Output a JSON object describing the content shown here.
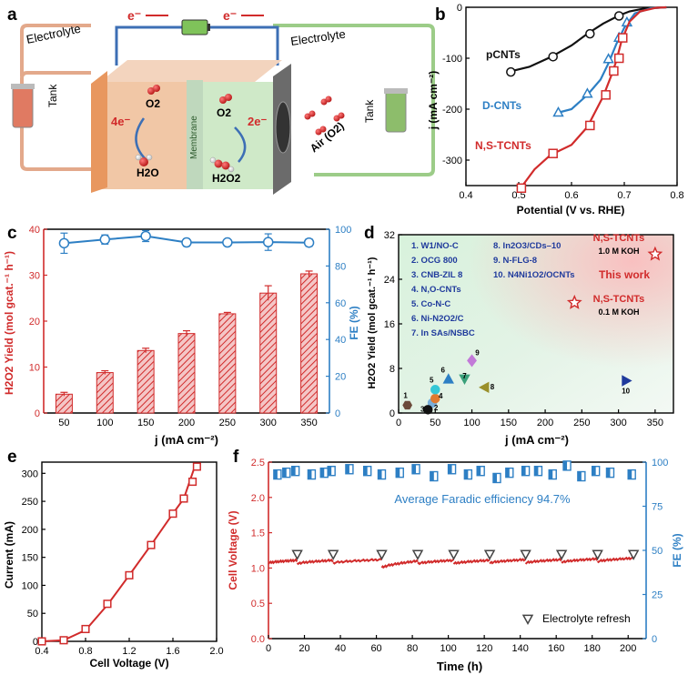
{
  "panels": {
    "a": {
      "letter": "a",
      "electron_left": "e⁻",
      "electron_right": "e⁻",
      "electrolyte_left": "Electrolyte",
      "electrolyte_right": "Electrolyte",
      "tank_left": "Tank",
      "tank_right": "Tank",
      "o2_left": "O2",
      "four_e": "4e⁻",
      "h2o": "H2O",
      "membrane": "Membrane",
      "o2_right": "O2",
      "two_e": "2e⁻",
      "h2o2": "H2O2",
      "air": "Air (O2)",
      "colors": {
        "anode": "#e8975f",
        "cathode": "#a9d7a0",
        "tank_left": "#e07a62",
        "tank_right": "#8dbd6b",
        "wire": "#3d6fb5",
        "electrolyte_left": "#e3a98b",
        "electrolyte_right": "#9ccc88"
      }
    },
    "b": {
      "letter": "b",
      "xlabel": "Potential (V vs. RHE)",
      "ylabel": "j (mA cm⁻²)",
      "label_pCNTs": "pCNTs",
      "label_DCNTs": "D-CNTs",
      "label_NSTCNTs": "N,S-TCNTs"
    },
    "c": {
      "letter": "c",
      "xlabel": "j (mA cm⁻²)",
      "ylabel_left": "H2O2 Yield (mol gcat.⁻¹ h⁻¹)",
      "ylabel_right": "FE (%)"
    },
    "d": {
      "letter": "d",
      "xlabel": "j (mA cm⁻²)",
      "ylabel": "H2O2 Yield (mol gcat.⁻¹ h⁻¹)",
      "legend_left": [
        "1. W1/NO-C",
        "2. OCG 800",
        "3. CNB-ZIL 8",
        "4. N,O-CNTs",
        "5. Co-N-C",
        "6. Ni-N2O2/C",
        "7. In SAs/NSBC"
      ],
      "legend_right": [
        "8. In2O3/CDs–10",
        "9. N-FLG-8",
        "10. N4Ni1O2/OCNTs"
      ],
      "this_work_1": "N,S-TCNTs",
      "this_work_1_cond": "1.0 M KOH",
      "this_work_label": "This work",
      "this_work_2": "N,S-TCNTs",
      "this_work_2_cond": "0.1 M KOH"
    },
    "e": {
      "letter": "e",
      "xlabel": "Cell Voltage (V)",
      "ylabel": "Current (mA)"
    },
    "f": {
      "letter": "f",
      "xlabel": "Time (h)",
      "ylabel_left": "Cell Voltage (V)",
      "ylabel_right": "FE (%)",
      "annotation": "Average Faradic efficiency 94.7%",
      "legend_refresh": "Electrolyte refresh"
    }
  },
  "chart_data": [
    {
      "panel": "b",
      "type": "line",
      "xlim": [
        0.4,
        0.8
      ],
      "ylim": [
        -350,
        0
      ],
      "xticks": [
        0.4,
        0.5,
        0.6,
        0.7,
        0.8
      ],
      "yticks": [
        0,
        -100,
        -200,
        -300
      ],
      "series": [
        {
          "name": "pCNTs",
          "color": "#111111",
          "marker": "circle",
          "points": [
            [
              0.48,
              -127
            ],
            [
              0.52,
              -117
            ],
            [
              0.56,
              -98
            ],
            [
              0.6,
              -75
            ],
            [
              0.63,
              -52
            ],
            [
              0.66,
              -32
            ],
            [
              0.69,
              -16
            ],
            [
              0.71,
              -8
            ],
            [
              0.74,
              -2
            ],
            [
              0.78,
              0
            ]
          ],
          "markers": [
            [
              0.485,
              -127
            ],
            [
              0.565,
              -97
            ],
            [
              0.635,
              -52
            ],
            [
              0.69,
              -17
            ]
          ]
        },
        {
          "name": "D-CNTs",
          "color": "#2d7fc4",
          "marker": "triangle",
          "points": [
            [
              0.57,
              -208
            ],
            [
              0.6,
              -200
            ],
            [
              0.63,
              -172
            ],
            [
              0.655,
              -142
            ],
            [
              0.67,
              -110
            ],
            [
              0.685,
              -72
            ],
            [
              0.7,
              -40
            ],
            [
              0.72,
              -12
            ],
            [
              0.75,
              -2
            ],
            [
              0.78,
              0
            ]
          ],
          "markers": [
            [
              0.575,
              -207
            ],
            [
              0.63,
              -170
            ],
            [
              0.67,
              -102
            ],
            [
              0.69,
              -60
            ],
            [
              0.705,
              -30
            ]
          ]
        },
        {
          "name": "N,S-TCNTs",
          "color": "#d12b2b",
          "marker": "square",
          "points": [
            [
              0.5,
              -360
            ],
            [
              0.53,
              -318
            ],
            [
              0.56,
              -290
            ],
            [
              0.6,
              -270
            ],
            [
              0.63,
              -235
            ],
            [
              0.66,
              -175
            ],
            [
              0.675,
              -135
            ],
            [
              0.685,
              -105
            ],
            [
              0.695,
              -65
            ],
            [
              0.71,
              -28
            ],
            [
              0.73,
              -8
            ],
            [
              0.76,
              -1
            ],
            [
              0.78,
              0
            ]
          ],
          "markers": [
            [
              0.505,
              -355
            ],
            [
              0.565,
              -287
            ],
            [
              0.635,
              -232
            ],
            [
              0.665,
              -172
            ],
            [
              0.68,
              -125
            ],
            [
              0.69,
              -100
            ],
            [
              0.697,
              -60
            ]
          ]
        }
      ]
    },
    {
      "panel": "c",
      "type": "bar",
      "categories": [
        "50",
        "100",
        "150",
        "200",
        "250",
        "300",
        "350"
      ],
      "xvalues": [
        50,
        100,
        150,
        200,
        250,
        300,
        350
      ],
      "xticks": [
        50,
        100,
        150,
        200,
        250,
        300,
        350
      ],
      "ylim_left": [
        0,
        40
      ],
      "yticks_left": [
        0,
        10,
        20,
        30,
        40
      ],
      "ylim_right": [
        0,
        100
      ],
      "yticks_right": [
        0,
        20,
        40,
        60,
        80,
        100
      ],
      "yield_values": [
        4.1,
        8.8,
        13.6,
        17.3,
        21.6,
        26.1,
        30.3
      ],
      "yield_errors": [
        0.4,
        0.4,
        0.5,
        0.6,
        0.3,
        1.6,
        0.6
      ],
      "fe_values": [
        92.4,
        94.4,
        96.3,
        92.8,
        92.8,
        93.0,
        92.7
      ],
      "fe_errors": [
        5.5,
        2.5,
        3.0,
        2.0,
        1.5,
        4.5,
        2.0
      ],
      "bar_color": "#d12b2b",
      "fe_color": "#2d7fc4"
    },
    {
      "panel": "d",
      "type": "scatter",
      "xlim": [
        0,
        375
      ],
      "ylim": [
        0,
        32
      ],
      "xticks": [
        0,
        50,
        100,
        150,
        200,
        250,
        300,
        350
      ],
      "yticks": [
        0,
        8,
        16,
        24,
        32
      ],
      "points": [
        {
          "label": "1",
          "x": 12,
          "y": 1.4,
          "color": "#6b4a3a",
          "marker": "hexagon"
        },
        {
          "label": "2",
          "x": 46,
          "y": 1.8,
          "color": "#7aaed8",
          "marker": "circle"
        },
        {
          "label": "3",
          "x": 40,
          "y": 0.6,
          "color": "#111111",
          "marker": "circle"
        },
        {
          "label": "4",
          "x": 50,
          "y": 2.6,
          "color": "#e07a30",
          "marker": "circle"
        },
        {
          "label": "5",
          "x": 50,
          "y": 4.2,
          "color": "#35c7d6",
          "marker": "circle"
        },
        {
          "label": "6",
          "x": 68,
          "y": 6.0,
          "color": "#2d7fc4",
          "marker": "triangle-up"
        },
        {
          "label": "7",
          "x": 90,
          "y": 6.2,
          "color": "#3aa07a",
          "marker": "triangle-down"
        },
        {
          "label": "8",
          "x": 118,
          "y": 4.6,
          "color": "#9a8f2a",
          "marker": "triangle-left"
        },
        {
          "label": "9",
          "x": 100,
          "y": 9.4,
          "color": "#c27ad8",
          "marker": "diamond"
        },
        {
          "label": "10",
          "x": 310,
          "y": 5.8,
          "color": "#1f3a9c",
          "marker": "triangle-right"
        }
      ],
      "this_work": [
        {
          "x": 350,
          "y": 28.5,
          "color": "#d12b2b",
          "marker": "star"
        },
        {
          "x": 240,
          "y": 19.8,
          "color": "#d12b2b",
          "marker": "star"
        }
      ]
    },
    {
      "panel": "e",
      "type": "line",
      "xlim": [
        0.4,
        2.0
      ],
      "ylim": [
        0,
        320
      ],
      "xticks": [
        0.4,
        0.8,
        1.2,
        1.6,
        2.0
      ],
      "yticks": [
        0,
        50,
        100,
        150,
        200,
        250,
        300
      ],
      "series": [
        {
          "name": "",
          "color": "#d12b2b",
          "marker": "square",
          "points": [
            [
              0.4,
              0
            ],
            [
              0.6,
              2
            ],
            [
              0.8,
              20
            ],
            [
              1.0,
              65
            ],
            [
              1.2,
              118
            ],
            [
              1.4,
              172
            ],
            [
              1.6,
              228
            ],
            [
              1.7,
              255
            ],
            [
              1.8,
              312
            ],
            [
              1.85,
              314
            ]
          ],
          "markers": [
            [
              0.4,
              0
            ],
            [
              0.6,
              2
            ],
            [
              0.8,
              22
            ],
            [
              1.0,
              67
            ],
            [
              1.2,
              118
            ],
            [
              1.4,
              172
            ],
            [
              1.6,
              228
            ],
            [
              1.7,
              255
            ],
            [
              1.78,
              285
            ],
            [
              1.82,
              312
            ]
          ]
        }
      ]
    },
    {
      "panel": "f",
      "type": "line",
      "xlim": [
        0,
        210
      ],
      "xticks": [
        0,
        20,
        40,
        60,
        80,
        100,
        120,
        140,
        160,
        180,
        200
      ],
      "ylim_left": [
        0,
        2.5
      ],
      "yticks_left": [
        0.0,
        0.5,
        1.0,
        1.5,
        2.0,
        2.5
      ],
      "ylim_right": [
        0,
        100
      ],
      "yticks_right": [
        0,
        25,
        50,
        75,
        100
      ],
      "voltage_segments": [
        {
          "t": [
            0,
            16
          ],
          "v": [
            1.07,
            1.11
          ]
        },
        {
          "t": [
            16,
            36
          ],
          "v": [
            1.06,
            1.11
          ]
        },
        {
          "t": [
            36,
            63
          ],
          "v": [
            1.07,
            1.12
          ]
        },
        {
          "t": [
            63,
            83
          ],
          "v": [
            1.0,
            1.1
          ]
        },
        {
          "t": [
            83,
            103
          ],
          "v": [
            1.06,
            1.11
          ]
        },
        {
          "t": [
            103,
            123
          ],
          "v": [
            1.06,
            1.11
          ]
        },
        {
          "t": [
            123,
            143
          ],
          "v": [
            1.07,
            1.12
          ]
        },
        {
          "t": [
            143,
            163
          ],
          "v": [
            1.07,
            1.12
          ]
        },
        {
          "t": [
            163,
            183
          ],
          "v": [
            1.08,
            1.13
          ]
        },
        {
          "t": [
            183,
            203
          ],
          "v": [
            1.09,
            1.14
          ]
        }
      ],
      "refresh_times": [
        16,
        36,
        63,
        83,
        103,
        123,
        143,
        163,
        183,
        203
      ],
      "refresh_voltage": 1.2,
      "fe_points": [
        [
          5,
          93
        ],
        [
          10,
          94
        ],
        [
          15,
          95
        ],
        [
          24,
          93
        ],
        [
          31,
          94
        ],
        [
          35,
          95
        ],
        [
          45,
          96
        ],
        [
          55,
          95
        ],
        [
          63,
          93
        ],
        [
          73,
          94
        ],
        [
          82,
          96
        ],
        [
          92,
          92
        ],
        [
          102,
          96
        ],
        [
          111,
          93
        ],
        [
          118,
          95
        ],
        [
          127,
          91
        ],
        [
          134,
          94
        ],
        [
          143,
          95
        ],
        [
          150,
          95
        ],
        [
          158,
          93
        ],
        [
          166,
          98
        ],
        [
          174,
          92
        ],
        [
          182,
          95
        ],
        [
          190,
          94
        ],
        [
          202,
          93
        ]
      ],
      "voltage_color": "#d12b2b",
      "fe_color": "#2d7fc4"
    }
  ]
}
